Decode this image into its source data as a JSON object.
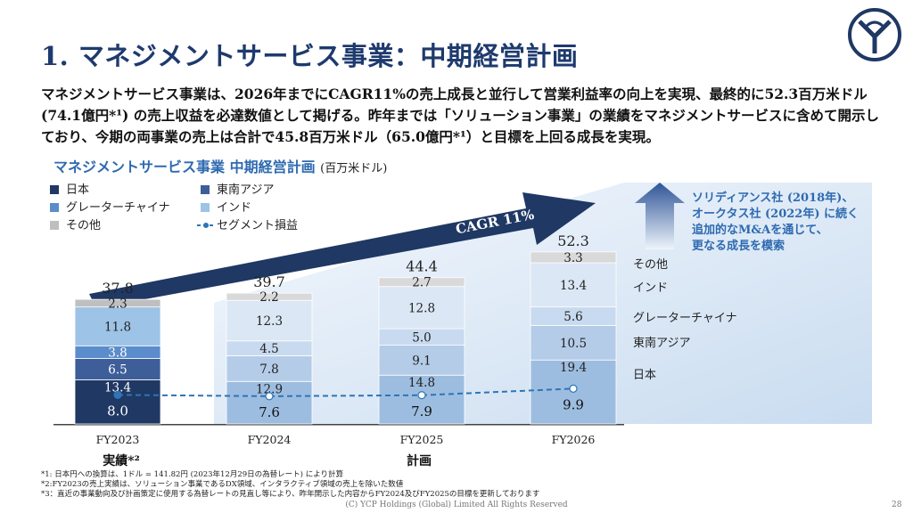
{
  "title": "1. マネジメントサービス事業：中期経営計画",
  "intro": "マネジメントサービス事業は、2026年までにCAGR11%の売上成長と並行して営業利益率の向上を実現、最終的に52.3百万米ドル (74.1億円*¹) の売上収益を必達数値として掲げる。昨年までは「ソリューション事業」の業績をマネジメントサービスに含めて開示しており、今期の両事業の売上は合計で45.8百万米ドル（65.0億円*¹）と目標を上回る成長を実現。",
  "chart_title": "マネジメントサービス事業 中期経営計画",
  "chart_unit": "(百万米ドル)",
  "callout": [
    "ソリディアンス社 (2018年)、",
    "オークタス社 (2022年) に続く",
    "追加的なM&Aを通じて、",
    "更なる成長を模索"
  ],
  "cagr_label": "CAGR 11%",
  "period_labels": {
    "actual": "実績*²",
    "plan": "計画"
  },
  "colors": {
    "japan": "#1f3864",
    "sea": "#3d5e99",
    "gc": "#5b8ccb",
    "india": "#9dc3e6",
    "other": "#bfbfbf",
    "arrow": "#1f3864",
    "segment": "#2e75b6",
    "title": "#1e3a6e",
    "accent": "#2e6ab0"
  },
  "chart_data": {
    "type": "bar",
    "stacked": true,
    "categories": [
      "FY2023",
      "FY2024",
      "FY2025",
      "FY2026"
    ],
    "series": [
      {
        "name": "日本",
        "key": "japan",
        "values": [
          13.4,
          12.9,
          14.8,
          19.4
        ]
      },
      {
        "name": "東南アジア",
        "key": "sea",
        "values": [
          6.5,
          7.8,
          9.1,
          10.5
        ]
      },
      {
        "name": "グレーターチャイナ",
        "key": "gc",
        "values": [
          3.8,
          4.5,
          5.0,
          5.6
        ]
      },
      {
        "name": "インド",
        "key": "india",
        "values": [
          11.8,
          12.3,
          12.8,
          13.4
        ]
      },
      {
        "name": "その他",
        "key": "other",
        "values": [
          2.3,
          2.2,
          2.7,
          3.3
        ]
      }
    ],
    "totals": [
      37.8,
      39.7,
      44.4,
      52.3
    ],
    "segment_profit": {
      "name": "セグメント損益",
      "values": [
        8.0,
        7.6,
        7.9,
        9.9
      ]
    },
    "legend_order": [
      "日本",
      "東南アジア",
      "グレーターチャイナ",
      "インド",
      "その他",
      "セグメント損益"
    ],
    "right_labels": [
      "その他",
      "インド",
      "グレーターチャイナ",
      "東南アジア",
      "日本"
    ]
  },
  "footnotes": [
    "*1: 日本円への換算は、1ドル = 141.82円 (2023年12月29日の為替レート) により計算",
    "*2:FY2023の売上実績は、ソリューション事業であるDX領域、インタラクティブ領域の売上を除いた数値",
    "*3：直近の事業動向及び計画策定に使用する為替レートの見直し等により、昨年開示した内容からFY2024及びFY2025の目標を更新しております"
  ],
  "copyright": "(C) YCP Holdings (Global) Limited All Rights Reserved",
  "page_number": "28"
}
